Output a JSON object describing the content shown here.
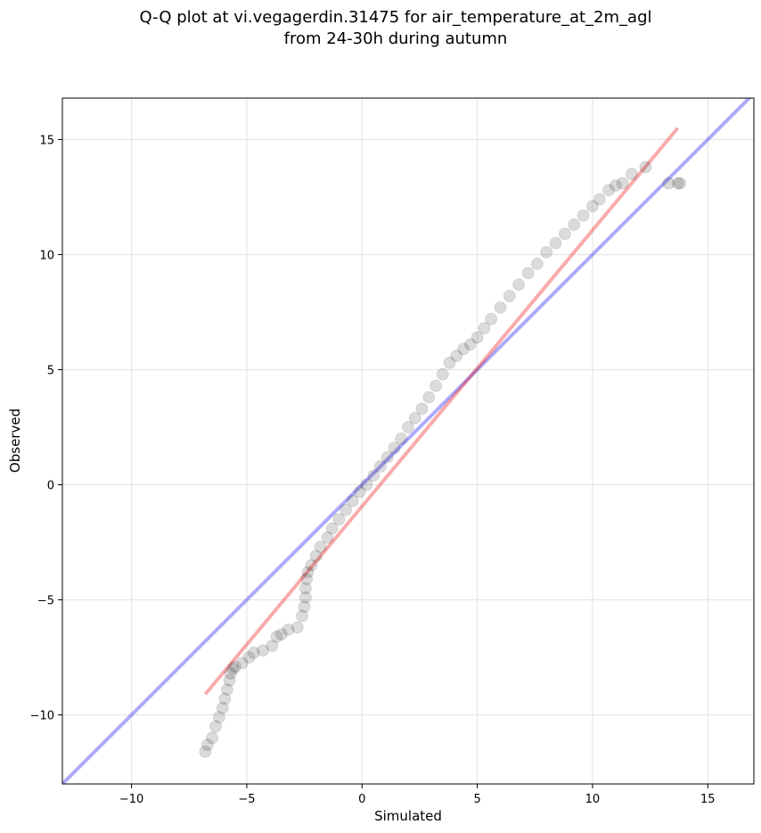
{
  "chart_data": {
    "type": "scatter",
    "title": "Q-Q plot at vi.vegagerdin.31475 for air_temperature_at_2m_agl",
    "subtitle": "from 24-30h during autumn",
    "xlabel": "Simulated",
    "ylabel": "Observed",
    "xlim": [
      -13,
      17
    ],
    "ylim": [
      -13,
      16.8
    ],
    "xticks": [
      -10,
      -5,
      0,
      5,
      10,
      15
    ],
    "yticks": [
      -10,
      -5,
      0,
      5,
      10,
      15
    ],
    "grid": true,
    "colors": {
      "points": "#000000",
      "identity_line": "#0000ee",
      "fit_line": "#ee0000",
      "grid": "#e6e6e6"
    },
    "identity_line": {
      "x": [
        -13,
        17
      ],
      "y": [
        -13,
        17
      ]
    },
    "fit_line": {
      "x": [
        -6.8,
        13.7
      ],
      "y": [
        -9.1,
        15.5
      ]
    },
    "series": [
      {
        "x": [
          -6.8,
          -6.7,
          -6.5,
          -6.35,
          -6.2,
          -6.05,
          -5.95,
          -5.85,
          -5.75,
          -5.7,
          -5.6,
          -5.5,
          -5.2,
          -4.9,
          -4.7,
          -4.3,
          -3.9,
          -3.7,
          -3.5,
          -3.2,
          -2.8,
          -2.6,
          -2.5,
          -2.45,
          -2.45,
          -2.4,
          -2.35,
          -2.2,
          -2.0,
          -1.8,
          -1.5,
          -1.3,
          -1.0,
          -0.7,
          -0.4,
          -0.1,
          0.2,
          0.5,
          0.8,
          1.1,
          1.4,
          1.7,
          2.0,
          2.3,
          2.6,
          2.9,
          3.2,
          3.5,
          3.8,
          4.1,
          4.4,
          4.7,
          5.0,
          5.3,
          5.6,
          6.0,
          6.4,
          6.8,
          7.2,
          7.6,
          8.0,
          8.4,
          8.8,
          9.2,
          9.6,
          10.0,
          10.3,
          10.7,
          11.0,
          11.3,
          11.7,
          12.3,
          13.3,
          13.7,
          13.8
        ],
        "y": [
          -11.6,
          -11.3,
          -11.0,
          -10.5,
          -10.1,
          -9.7,
          -9.3,
          -8.9,
          -8.5,
          -8.2,
          -8.0,
          -7.9,
          -7.75,
          -7.5,
          -7.3,
          -7.2,
          -7.0,
          -6.6,
          -6.5,
          -6.3,
          -6.2,
          -5.7,
          -5.3,
          -4.9,
          -4.5,
          -4.1,
          -3.8,
          -3.5,
          -3.1,
          -2.7,
          -2.3,
          -1.9,
          -1.5,
          -1.1,
          -0.7,
          -0.3,
          0.0,
          0.4,
          0.8,
          1.2,
          1.6,
          2.0,
          2.5,
          2.9,
          3.3,
          3.8,
          4.3,
          4.8,
          5.3,
          5.6,
          5.9,
          6.1,
          6.4,
          6.8,
          7.2,
          7.7,
          8.2,
          8.7,
          9.2,
          9.6,
          10.1,
          10.5,
          10.9,
          11.3,
          11.7,
          12.1,
          12.4,
          12.8,
          13.0,
          13.1,
          13.5,
          13.8,
          13.1,
          13.1,
          13.1
        ]
      }
    ]
  }
}
